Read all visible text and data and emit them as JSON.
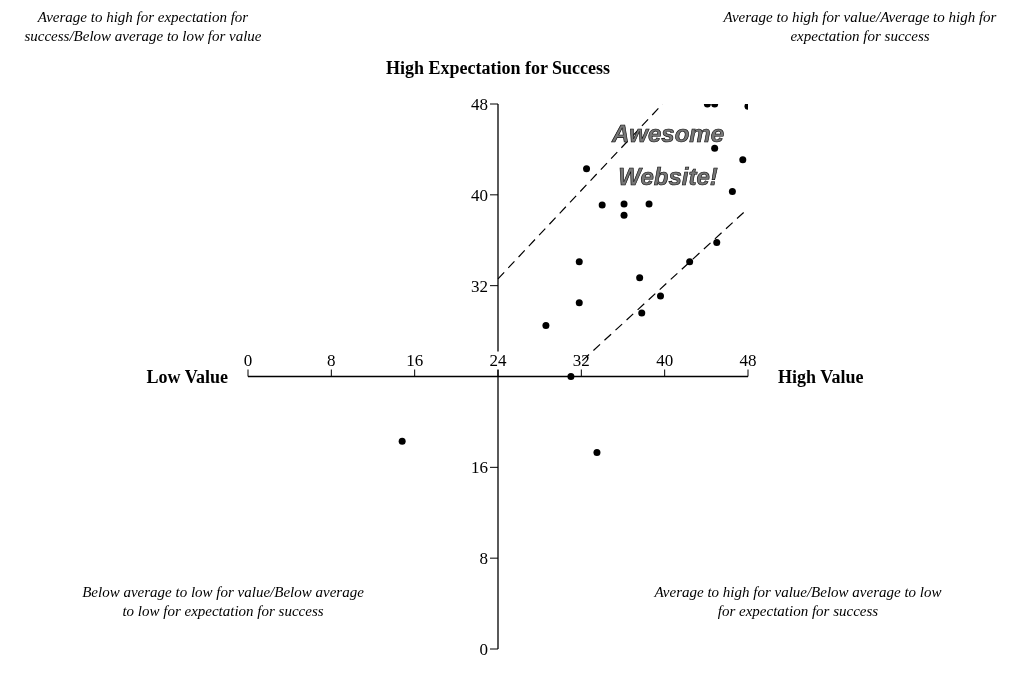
{
  "chart_data": {
    "type": "scatter",
    "ylabel": "High Expectation for Success",
    "xlabel": "High Value",
    "annotations": [
      "Average to high for expectation for success/Below average to low for value",
      "Average to high for value/Average to high for expectation for success",
      "Below average to low for value/Below average to low for expectation for success",
      "Average to high for value/Below average to low for expectation for success",
      "Low Value",
      "Awesome Website!"
    ],
    "xlim": [
      0,
      48
    ],
    "ylim": [
      0,
      48
    ],
    "xticks": [
      0,
      8,
      16,
      24,
      32,
      40,
      48
    ],
    "yticks": [
      0,
      8,
      16,
      32,
      40,
      48
    ],
    "marker": "circle",
    "legend": false,
    "grid": false,
    "series": [
      {
        "color": "#000000",
        "x": [
          44.1,
          44.8,
          48,
          44.8,
          47.5,
          46.5,
          32.5,
          34,
          36.1,
          36.1,
          38.5,
          45,
          42.4,
          31.8,
          37.6,
          39.6,
          31.8,
          37.8,
          28.6,
          31,
          14.8,
          33.5
        ],
        "values": [
          48,
          48,
          47.8,
          44.1,
          43.1,
          40.3,
          42.3,
          39.1,
          39.2,
          38.2,
          39.2,
          35.8,
          34.1,
          34.1,
          32.7,
          31.1,
          30.5,
          29.6,
          28.5,
          24,
          18.3,
          17.3
        ]
      },
      {
        "type": "line",
        "marker": "none",
        "color": "#000000",
        "line_style": "dashed",
        "x": [
          24,
          39.8
        ],
        "values": [
          32.6,
          48
        ]
      },
      {
        "type": "line",
        "marker": "none",
        "color": "#000000",
        "line_style": "dashed",
        "x": [
          32.1,
          48
        ],
        "values": [
          25.4,
          38.8
        ]
      }
    ]
  }
}
